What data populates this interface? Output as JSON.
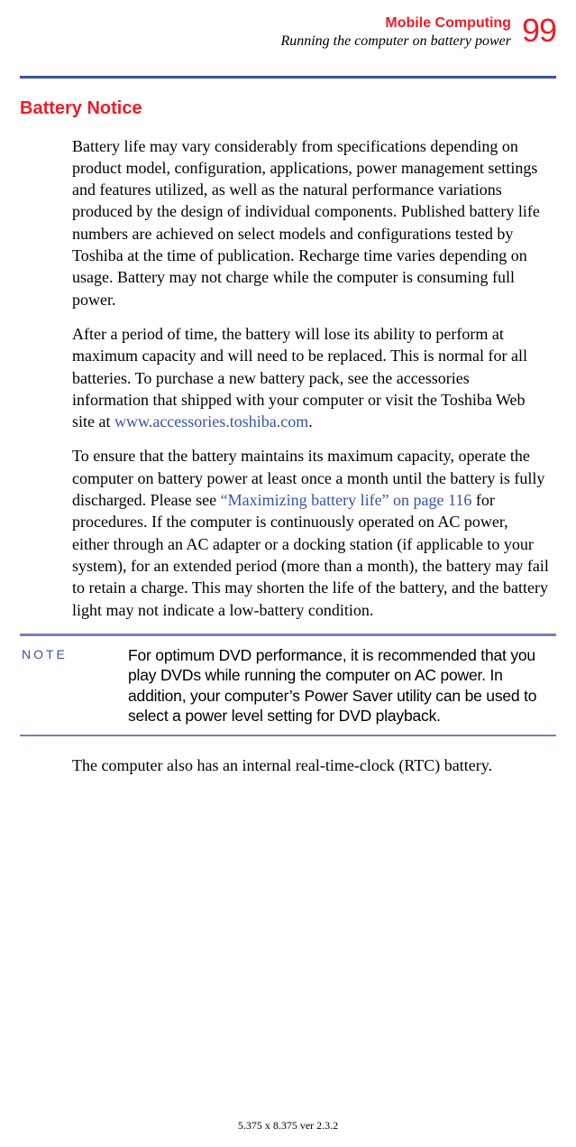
{
  "header": {
    "chapter": "Mobile Computing",
    "subtitle": "Running the computer on battery power",
    "page_number": "99"
  },
  "colors": {
    "accent_red": "#ee1c25",
    "rule_blue": "#3953a4",
    "note_rule": "#797fbb",
    "link": "#3953a4",
    "text": "#000000",
    "background": "#ffffff"
  },
  "section": {
    "heading": "Battery Notice",
    "p1": "Battery life may vary considerably from specifications depending on product model, configuration, applications, power management settings and features utilized, as well as the natural performance variations produced by the design of individual components. Published battery life numbers are achieved on select models and configurations tested by Toshiba at the time of publication. Recharge time varies depending on usage. Battery may not charge while the computer is consuming full power.",
    "p2_a": "After a period of time, the battery will lose its ability to perform at maximum capacity and will need to be replaced. This is normal for all batteries. To purchase a new battery pack, see the accessories information that shipped with your computer or visit the Toshiba Web site at ",
    "p2_link": "www.accessories.toshiba.com",
    "p2_b": ".",
    "p3_a": "To ensure that the battery maintains its maximum capacity, operate the computer on battery power at least once a month until the battery is fully discharged. Please see ",
    "p3_link": "“Maximizing battery life” on page 116",
    "p3_b": " for procedures. If the computer is continuously operated on AC power, either through an AC adapter or a docking station (if applicable to your system), for an extended period (more than a month), the battery may fail to retain a charge. This may shorten the life of the battery, and the battery light may not indicate a low-battery condition."
  },
  "note": {
    "label": "NOTE",
    "text": "For optimum DVD performance, it is recommended that you play DVDs while running the computer on AC power. In addition, your computer’s Power Saver utility can be used to select a power level setting for DVD playback."
  },
  "after_note": {
    "p": "The computer also has an internal real-time-clock (RTC) battery."
  },
  "footer": {
    "text": "5.375 x 8.375 ver 2.3.2"
  }
}
